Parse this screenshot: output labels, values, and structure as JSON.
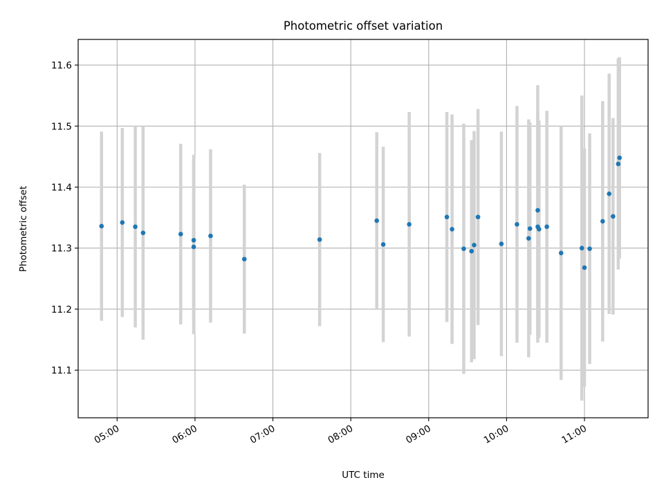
{
  "chart_data": {
    "type": "scatter",
    "title": "Photometric offset variation",
    "xlabel": "UTC time",
    "ylabel": "Photometric offset",
    "xlim": [
      "04:30",
      "11:49"
    ],
    "ylim": [
      11.022,
      11.642
    ],
    "x_ticks": [
      "05:00",
      "06:00",
      "07:00",
      "08:00",
      "09:00",
      "10:00",
      "11:00"
    ],
    "y_ticks": [
      "11.1",
      "11.2",
      "11.3",
      "11.4",
      "11.5",
      "11.6"
    ],
    "grid": true,
    "colors": {
      "point": "#1f77b4",
      "errorbar": "#d3d3d3",
      "grid": "#b0b0b0"
    },
    "points": [
      {
        "x": "04:48",
        "y": 11.336,
        "err": 0.155
      },
      {
        "x": "05:04",
        "y": 11.342,
        "err": 0.155
      },
      {
        "x": "05:14",
        "y": 11.335,
        "err": 0.165
      },
      {
        "x": "05:20",
        "y": 11.325,
        "err": 0.175
      },
      {
        "x": "05:49",
        "y": 11.323,
        "err": 0.148
      },
      {
        "x": "05:59",
        "y": 11.313,
        "err": 0.14
      },
      {
        "x": "05:59",
        "y": 11.302,
        "err": 0.143
      },
      {
        "x": "06:12",
        "y": 11.32,
        "err": 0.142
      },
      {
        "x": "06:38",
        "y": 11.282,
        "err": 0.122
      },
      {
        "x": "07:36",
        "y": 11.314,
        "err": 0.142
      },
      {
        "x": "08:20",
        "y": 11.345,
        "err": 0.145
      },
      {
        "x": "08:25",
        "y": 11.306,
        "err": 0.16
      },
      {
        "x": "08:45",
        "y": 11.339,
        "err": 0.184
      },
      {
        "x": "09:14",
        "y": 11.351,
        "err": 0.172
      },
      {
        "x": "09:18",
        "y": 11.331,
        "err": 0.188
      },
      {
        "x": "09:27",
        "y": 11.299,
        "err": 0.205
      },
      {
        "x": "09:33",
        "y": 11.295,
        "err": 0.182
      },
      {
        "x": "09:35",
        "y": 11.305,
        "err": 0.187
      },
      {
        "x": "09:38",
        "y": 11.351,
        "err": 0.177
      },
      {
        "x": "09:56",
        "y": 11.307,
        "err": 0.184
      },
      {
        "x": "10:08",
        "y": 11.339,
        "err": 0.194
      },
      {
        "x": "10:17",
        "y": 11.316,
        "err": 0.195
      },
      {
        "x": "10:18",
        "y": 11.332,
        "err": 0.174
      },
      {
        "x": "10:24",
        "y": 11.335,
        "err": 0.19
      },
      {
        "x": "10:24",
        "y": 11.362,
        "err": 0.205
      },
      {
        "x": "10:25",
        "y": 11.331,
        "err": 0.178
      },
      {
        "x": "10:31",
        "y": 11.335,
        "err": 0.19
      },
      {
        "x": "10:42",
        "y": 11.292,
        "err": 0.208
      },
      {
        "x": "10:58",
        "y": 11.3,
        "err": 0.25
      },
      {
        "x": "11:00",
        "y": 11.268,
        "err": 0.195
      },
      {
        "x": "11:04",
        "y": 11.299,
        "err": 0.189
      },
      {
        "x": "11:14",
        "y": 11.344,
        "err": 0.197
      },
      {
        "x": "11:19",
        "y": 11.389,
        "err": 0.197
      },
      {
        "x": "11:22",
        "y": 11.352,
        "err": 0.161
      },
      {
        "x": "11:26",
        "y": 11.438,
        "err": 0.173
      },
      {
        "x": "11:27",
        "y": 11.448,
        "err": 0.165
      }
    ]
  }
}
